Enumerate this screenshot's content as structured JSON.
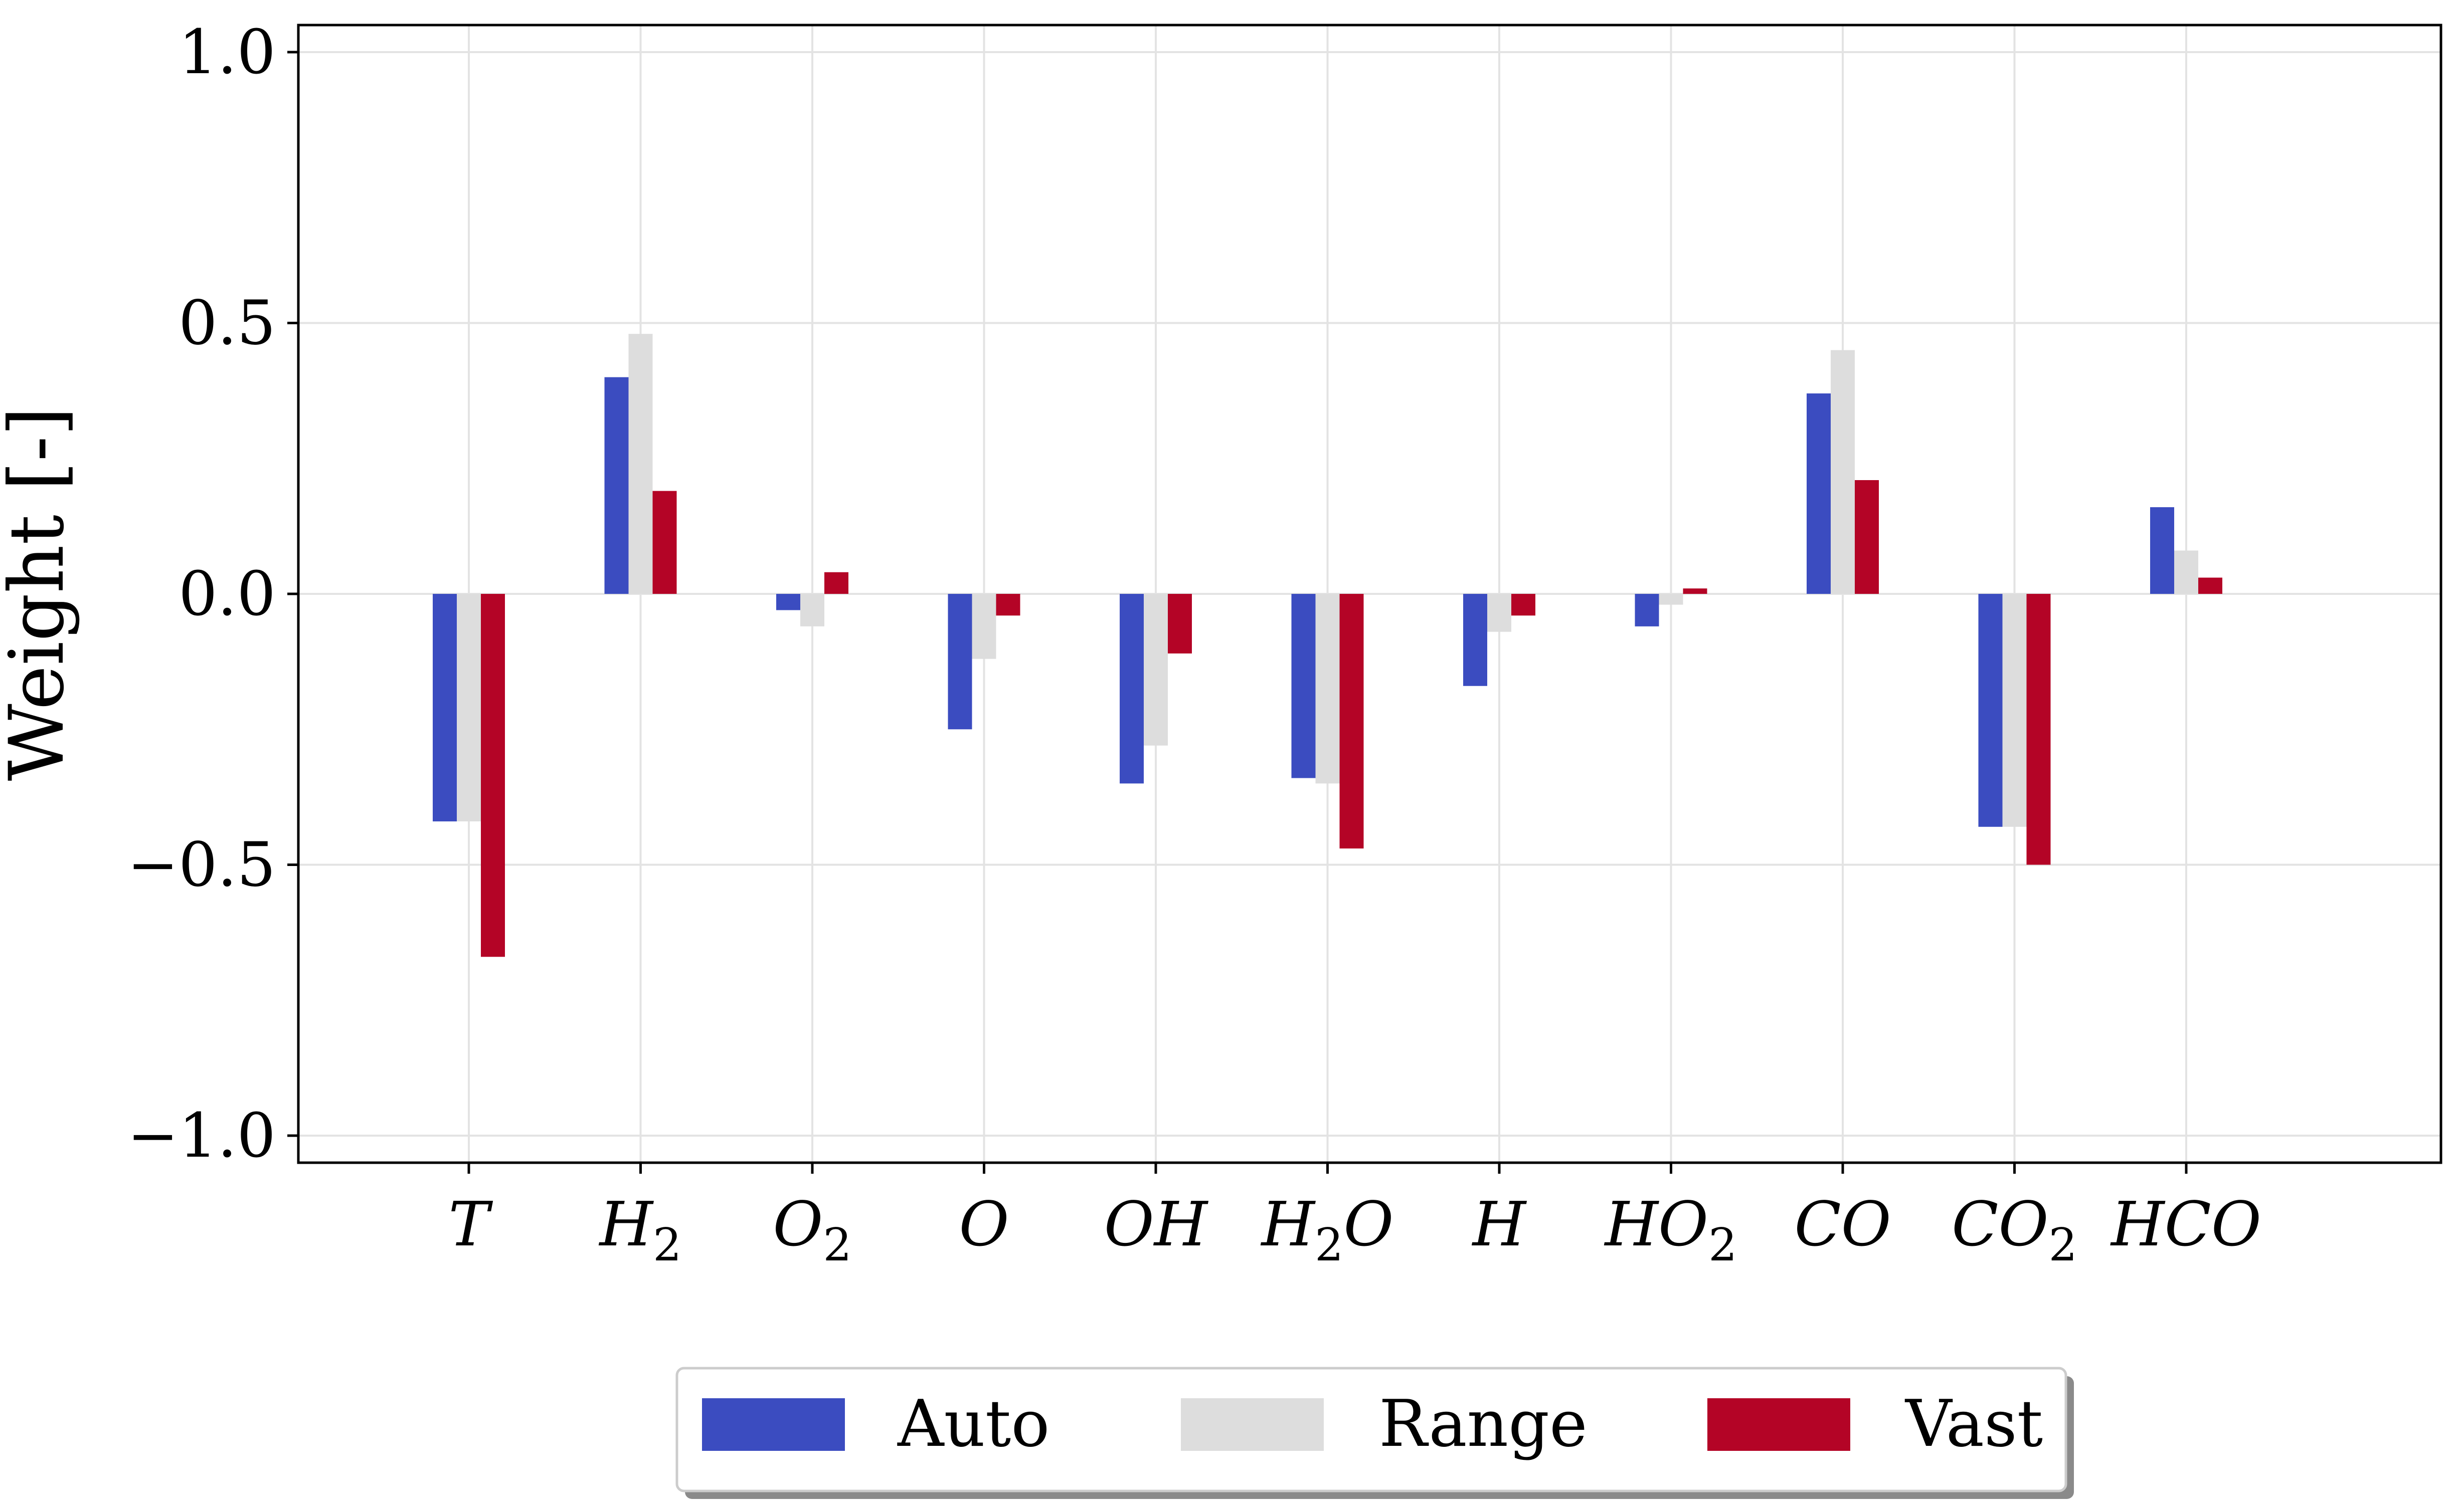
{
  "chart_data": {
    "type": "bar",
    "categories": [
      "T",
      "H",
      "O",
      "O",
      "OH",
      "H",
      "H",
      "HO",
      "CO",
      "CO",
      "HCO"
    ],
    "category_subscripts": [
      "",
      "2",
      "2",
      "",
      "",
      "2",
      "",
      "2",
      "",
      "2",
      ""
    ],
    "category_suffixes": [
      "",
      "",
      "",
      "",
      "",
      "O",
      "",
      "",
      "",
      "",
      ""
    ],
    "series": [
      {
        "name": "Auto",
        "color": "#3b4cc0",
        "values": [
          -0.42,
          0.4,
          -0.03,
          -0.25,
          -0.35,
          -0.34,
          -0.17,
          -0.06,
          0.37,
          -0.43,
          0.16
        ]
      },
      {
        "name": "Range",
        "color": "#dddddd",
        "values": [
          -0.42,
          0.48,
          -0.06,
          -0.12,
          -0.28,
          -0.35,
          -0.07,
          -0.02,
          0.45,
          -0.43,
          0.08
        ]
      },
      {
        "name": "Vast",
        "color": "#b40426",
        "values": [
          -0.67,
          0.19,
          0.04,
          -0.04,
          -0.11,
          -0.47,
          -0.04,
          0.01,
          0.21,
          -0.5,
          0.03
        ]
      }
    ],
    "xlabel": "",
    "ylabel": "Weight [-]",
    "ylim": [
      -1.05,
      1.05
    ],
    "yticks": [
      1.0,
      0.5,
      0.0,
      -0.5,
      -1.0
    ],
    "ytick_labels": [
      "1.0",
      "0.5",
      "0.0",
      "−0.5",
      "−1.0"
    ],
    "grid": true,
    "legend_position": "bottom-center"
  }
}
